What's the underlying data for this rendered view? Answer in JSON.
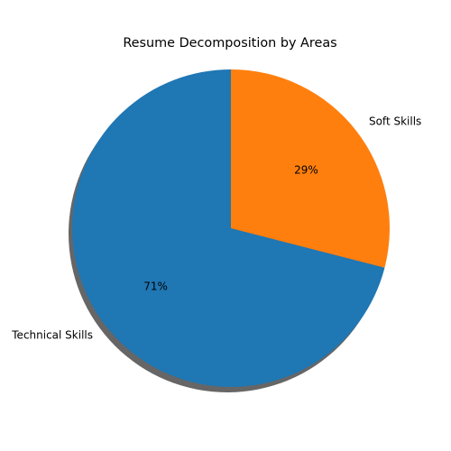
{
  "chart_data": {
    "type": "pie",
    "title": "Resume Decomposition by Areas",
    "labels": [
      "Technical Skills",
      "Soft Skills"
    ],
    "values": [
      71,
      29
    ],
    "percent_labels": [
      "71%",
      "29%"
    ],
    "colors": [
      "#1f77b4",
      "#ff7f0e"
    ],
    "start_angle_deg": 90,
    "direction": "counterclockwise",
    "shadow": true
  }
}
